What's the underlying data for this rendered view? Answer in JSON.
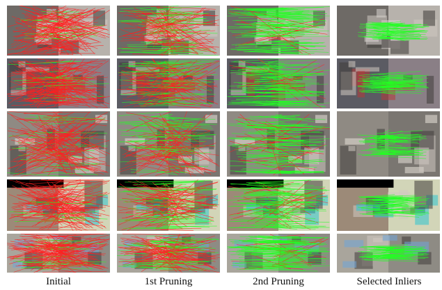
{
  "columns": [
    {
      "id": "initial",
      "label": "Initial",
      "red_ratio": 0.85
    },
    {
      "id": "pruning1",
      "label": "1st Pruning",
      "red_ratio": 0.6
    },
    {
      "id": "pruning2",
      "label": "2nd Pruning",
      "red_ratio": 0.15
    },
    {
      "id": "inliers",
      "label": "Selected Inliers",
      "red_ratio": 0.0
    }
  ],
  "rows": [
    {
      "id": "row-1",
      "scene": "indoor-room",
      "bg_left": "#6e6a66",
      "bg_right": "#b7b2ac",
      "accent": "#d9d4cf"
    },
    {
      "id": "row-2",
      "scene": "room-with-window",
      "bg_left": "#5b5b63",
      "bg_right": "#8a7f86",
      "accent": "#b43a3a"
    },
    {
      "id": "row-3",
      "scene": "crowd-street",
      "bg_left": "#8f8a83",
      "bg_right": "#7a7671",
      "accent": "#e7e1d8"
    },
    {
      "id": "row-4",
      "scene": "cathedral",
      "bg_left": "#9c8a78",
      "bg_right": "#d2d5b8",
      "accent": "#2ec5cf"
    },
    {
      "id": "row-5",
      "scene": "sidewalk-people",
      "bg_left": "#a9a59c",
      "bg_right": "#8e8b84",
      "accent": "#6fa6d8"
    }
  ],
  "colors": {
    "match_red": "#ff2020",
    "match_green": "#22ff22"
  }
}
